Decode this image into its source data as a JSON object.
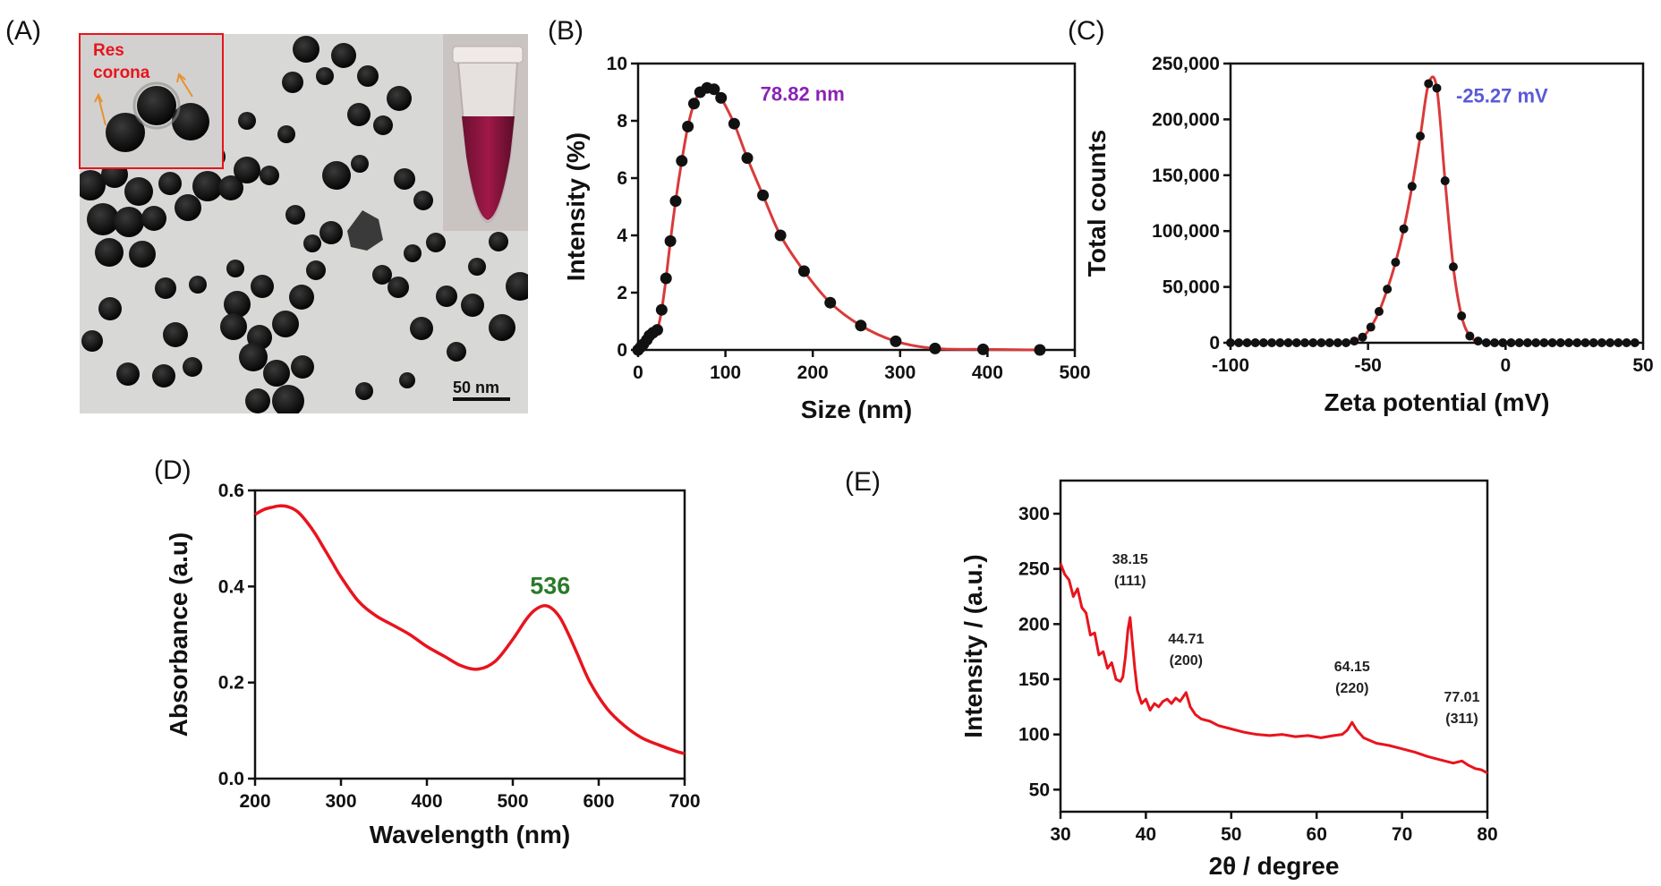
{
  "colors": {
    "curve": "#e8141d",
    "dot": "#111111",
    "fit": "#d93a3a",
    "peakB": "#8a22b5",
    "peakC": "#5a5ad6",
    "peakD": "#2a7a2a",
    "tem_label": "#e8141d"
  },
  "panelA": {
    "label": "(A)",
    "inset_text_1": "Res",
    "inset_text_2": "corona",
    "scale_bar_text": "50 nm"
  },
  "chart_data": [
    {
      "id": "B",
      "label": "(B)",
      "type": "scatter",
      "xlabel": "Size (nm)",
      "ylabel": "Intensity (%)",
      "xlim": [
        0,
        500
      ],
      "ylim": [
        0,
        10
      ],
      "xticks": [
        0,
        100,
        200,
        300,
        400,
        500
      ],
      "yticks": [
        0,
        2,
        4,
        6,
        8,
        10
      ],
      "peak_label": "78.82 nm",
      "x": [
        0,
        3,
        6,
        10,
        13,
        17,
        22,
        27,
        32,
        37,
        43,
        50,
        57,
        64,
        71,
        79,
        87,
        95,
        110,
        125,
        143,
        163,
        190,
        220,
        255,
        295,
        340,
        395,
        460
      ],
      "y": [
        0,
        0.1,
        0.2,
        0.35,
        0.5,
        0.6,
        0.7,
        1.4,
        2.5,
        3.8,
        5.2,
        6.6,
        7.8,
        8.6,
        9.0,
        9.15,
        9.1,
        8.8,
        7.9,
        6.7,
        5.4,
        4.0,
        2.75,
        1.65,
        0.85,
        0.3,
        0.05,
        0.02,
        0.0
      ]
    },
    {
      "id": "C",
      "label": "(C)",
      "type": "scatter",
      "xlabel": "Zeta potential (mV)",
      "ylabel": "Total counts",
      "xlim": [
        -100,
        50
      ],
      "ylim": [
        0,
        250000
      ],
      "xticks": [
        -100,
        -50,
        0,
        50
      ],
      "yticks": [
        0,
        50000,
        100000,
        150000,
        200000,
        250000
      ],
      "ytick_labels": [
        "0",
        "50,000",
        "100,000",
        "150,000",
        "200,000",
        "250,000"
      ],
      "peak_label": "-25.27 mV",
      "x": [
        -100,
        -97,
        -94,
        -91,
        -88,
        -85,
        -82,
        -79,
        -76,
        -73,
        -70,
        -67,
        -64,
        -61,
        -58,
        -55,
        -52,
        -49,
        -46,
        -43,
        -40,
        -37,
        -34,
        -31,
        -28,
        -25,
        -22,
        -19,
        -16,
        -13,
        -10,
        -7,
        -4,
        -1,
        2,
        5,
        8,
        11,
        14,
        17,
        20,
        23,
        26,
        29,
        32,
        35,
        38,
        41,
        44,
        47
      ],
      "y": [
        0,
        0,
        0,
        0,
        0,
        0,
        0,
        0,
        0,
        0,
        0,
        0,
        0,
        0,
        0,
        1500,
        5000,
        14000,
        28000,
        48000,
        72000,
        102000,
        140000,
        185000,
        232000,
        228000,
        145000,
        68000,
        24000,
        6000,
        1500,
        0,
        0,
        0,
        0,
        0,
        0,
        0,
        0,
        0,
        0,
        0,
        0,
        0,
        0,
        0,
        0,
        0,
        0,
        0
      ]
    },
    {
      "id": "D",
      "label": "(D)",
      "type": "line",
      "xlabel": "Wavelength (nm)",
      "ylabel": "Absorbance (a.u)",
      "xlim": [
        200,
        700
      ],
      "ylim": [
        0,
        0.6
      ],
      "xticks": [
        200,
        300,
        400,
        500,
        600,
        700
      ],
      "yticks": [
        0.0,
        0.2,
        0.4,
        0.6
      ],
      "ytick_labels": [
        "0.0",
        "0.2",
        "0.4",
        "0.6"
      ],
      "peak_label": "536",
      "x": [
        200,
        210,
        220,
        230,
        240,
        250,
        260,
        270,
        280,
        290,
        300,
        320,
        340,
        360,
        380,
        400,
        420,
        440,
        460,
        480,
        500,
        515,
        525,
        536,
        545,
        555,
        565,
        575,
        590,
        610,
        630,
        650,
        670,
        690,
        700
      ],
      "y": [
        0.55,
        0.56,
        0.565,
        0.568,
        0.565,
        0.555,
        0.535,
        0.51,
        0.48,
        0.45,
        0.42,
        0.37,
        0.34,
        0.32,
        0.3,
        0.275,
        0.255,
        0.235,
        0.228,
        0.245,
        0.29,
        0.33,
        0.35,
        0.36,
        0.355,
        0.335,
        0.3,
        0.26,
        0.2,
        0.145,
        0.11,
        0.085,
        0.07,
        0.057,
        0.052
      ]
    },
    {
      "id": "E",
      "label": "(E)",
      "type": "line",
      "xlabel": "2θ / degree",
      "ylabel": "Intensity / (a.u.)",
      "xlim": [
        30,
        80
      ],
      "ylim": [
        30,
        330
      ],
      "xticks": [
        30,
        40,
        50,
        60,
        70,
        80
      ],
      "yticks": [
        50,
        100,
        150,
        200,
        250,
        300
      ],
      "x": [
        30,
        30.5,
        31,
        31.5,
        32,
        32.5,
        33,
        33.5,
        34,
        34.5,
        35,
        35.5,
        36,
        36.5,
        37,
        37.3,
        37.6,
        37.9,
        38.15,
        38.4,
        38.7,
        39,
        39.5,
        40,
        40.5,
        41,
        41.5,
        42,
        42.5,
        43,
        43.5,
        44,
        44.71,
        45.2,
        45.8,
        46.5,
        47.5,
        48.5,
        50,
        51.5,
        53,
        54.5,
        56,
        57.5,
        59,
        60.5,
        62,
        63,
        63.6,
        64.15,
        64.7,
        65.5,
        67,
        68.5,
        70,
        71.5,
        73,
        74.5,
        76,
        77.01,
        77.8,
        78.6,
        79.3,
        80
      ],
      "y": [
        255,
        245,
        240,
        225,
        232,
        215,
        210,
        190,
        192,
        172,
        175,
        160,
        165,
        150,
        148,
        152,
        170,
        195,
        206,
        185,
        160,
        140,
        128,
        132,
        122,
        128,
        125,
        130,
        132,
        128,
        133,
        130,
        138,
        125,
        118,
        114,
        112,
        108,
        105,
        102,
        100,
        99,
        100,
        98,
        99,
        97,
        99,
        100,
        104,
        111,
        104,
        97,
        92,
        90,
        87,
        84,
        80,
        77,
        74,
        76,
        72,
        69,
        68,
        65
      ],
      "annotations": [
        {
          "x": 38.15,
          "line1": "38.15",
          "line2": "(111)"
        },
        {
          "x": 44.71,
          "line1": "44.71",
          "line2": "(200)"
        },
        {
          "x": 64.15,
          "line1": "64.15",
          "line2": "(220)"
        },
        {
          "x": 77.01,
          "line1": "77.01",
          "line2": "(311)"
        }
      ]
    }
  ]
}
